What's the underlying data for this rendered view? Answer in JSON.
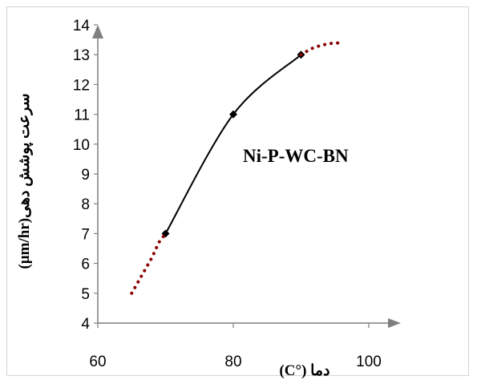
{
  "chart_data": {
    "type": "line",
    "annotation": "Ni-P-WC-BN",
    "xlabel": "دما (°C)",
    "ylabel": "سرعت پوشش دهی(µm/hr)",
    "xlim": [
      60,
      100
    ],
    "ylim": [
      4,
      14
    ],
    "xticks": [
      "60",
      "80",
      "100"
    ],
    "yticks": [
      "4",
      "5",
      "6",
      "7",
      "8",
      "9",
      "10",
      "11",
      "12",
      "13",
      "14"
    ],
    "series": [
      {
        "style": "solid",
        "color": "#000000",
        "marker": "diamond",
        "points": [
          [
            70,
            7
          ],
          [
            80,
            11
          ],
          [
            90,
            13
          ]
        ]
      },
      {
        "style": "dotted",
        "color": "#8b0000",
        "points": [
          [
            65,
            5
          ],
          [
            66.5,
            5.6
          ],
          [
            68,
            6.2
          ],
          [
            69,
            6.7
          ],
          [
            70,
            7
          ]
        ]
      },
      {
        "style": "dotted",
        "color": "#8b0000",
        "points": [
          [
            90,
            13
          ],
          [
            91.5,
            13.2
          ],
          [
            93,
            13.32
          ],
          [
            94.5,
            13.38
          ],
          [
            96,
            13.4
          ]
        ]
      }
    ],
    "grid": false
  }
}
